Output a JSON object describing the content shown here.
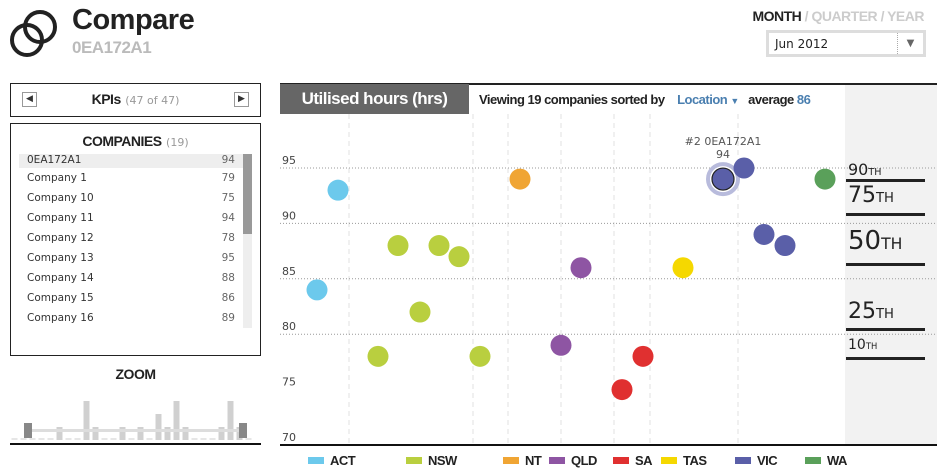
{
  "header": {
    "title": "Compare",
    "subtitle": "0EA172A1",
    "logo_icon": "overlapping-circles-icon"
  },
  "period": {
    "options": [
      "MONTH",
      "QUARTER",
      "YEAR"
    ],
    "active": "MONTH",
    "separator": "/",
    "selected_month": "Jun 2012"
  },
  "kpis": {
    "label": "KPIs",
    "count": "(47 of 47)"
  },
  "companies": {
    "title": "COMPANIES",
    "count": "(19)",
    "selected": "0EA172A1",
    "items": [
      {
        "name": "0EA172A1",
        "value": "94"
      },
      {
        "name": "Company 1",
        "value": "79"
      },
      {
        "name": "Company 10",
        "value": "75"
      },
      {
        "name": "Company 11",
        "value": "94"
      },
      {
        "name": "Company 12",
        "value": "78"
      },
      {
        "name": "Company 13",
        "value": "95"
      },
      {
        "name": "Company 14",
        "value": "88"
      },
      {
        "name": "Company 15",
        "value": "86"
      },
      {
        "name": "Company 16",
        "value": "89"
      }
    ]
  },
  "zoom": {
    "title": "ZOOM"
  },
  "chart": {
    "metric": "Utilised hours (hrs)",
    "viewing_prefix": "Viewing 19 companies sorted by",
    "sort_by": "Location",
    "average_label": "average",
    "average": "86",
    "y_ticks": [
      "95",
      "90",
      "85",
      "80",
      "75",
      "70"
    ],
    "highlight": {
      "label": "#2 0EA172A1",
      "value": "94"
    },
    "percentiles": [
      {
        "n": "90",
        "s": "TH"
      },
      {
        "n": "75",
        "s": "TH"
      },
      {
        "n": "50",
        "s": "TH"
      },
      {
        "n": "25",
        "s": "TH"
      },
      {
        "n": "10",
        "s": "TH"
      }
    ]
  },
  "chart_data": {
    "type": "scatter",
    "ylim": [
      70,
      95
    ],
    "grid": true,
    "legend": "bottom",
    "locations": [
      {
        "name": "ACT",
        "color": "#6cc9ec",
        "values": [
          93,
          84
        ]
      },
      {
        "name": "NSW",
        "color": "#b9cf3f",
        "values": [
          88,
          88,
          87,
          82,
          78,
          78
        ]
      },
      {
        "name": "NT",
        "color": "#f0a534",
        "values": [
          94
        ]
      },
      {
        "name": "QLD",
        "color": "#8e55a3",
        "values": [
          86,
          79
        ]
      },
      {
        "name": "SA",
        "color": "#e03030",
        "values": [
          78,
          75
        ]
      },
      {
        "name": "TAS",
        "color": "#f5d800",
        "values": [
          86
        ]
      },
      {
        "name": "VIC",
        "color": "#5a5fa8",
        "values": [
          94,
          95,
          89,
          88
        ],
        "selected_index": 0
      },
      {
        "name": "WA",
        "color": "#5aa05a",
        "values": [
          94
        ]
      }
    ]
  }
}
